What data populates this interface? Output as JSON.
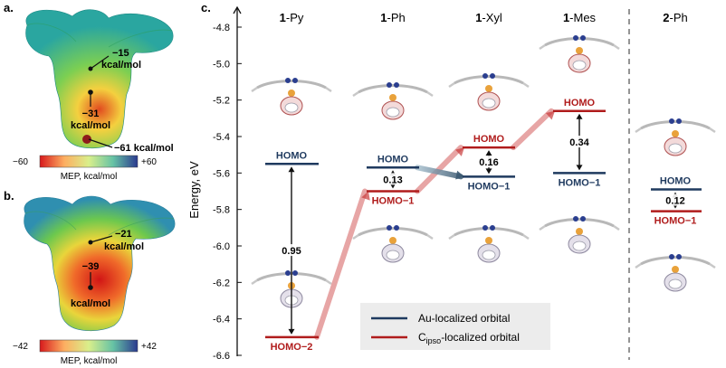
{
  "panels": {
    "a": {
      "label": "a.",
      "annotations": [
        {
          "id": "ann-a-15",
          "lines": [
            "−15",
            "kcal/mol"
          ]
        },
        {
          "id": "ann-a-31",
          "lines": [
            "−31",
            "kcal/mol"
          ]
        },
        {
          "id": "ann-a-61",
          "lines": [
            "−61 kcal/mol"
          ]
        }
      ],
      "colorbar": {
        "min_label": "−60",
        "max_label": "+60",
        "caption": "MEP, kcal/mol"
      }
    },
    "b": {
      "label": "b.",
      "annotations": [
        {
          "id": "ann-b-21",
          "lines": [
            "−21",
            "kcal/mol"
          ]
        },
        {
          "id": "ann-b-39",
          "lines": [
            "−39",
            "kcal/mol"
          ]
        }
      ],
      "colorbar": {
        "min_label": "−42",
        "max_label": "+42",
        "caption": "MEP, kcal/mol"
      }
    },
    "c": {
      "label": "c."
    }
  },
  "colors": {
    "au_orbital": "#1f3a5f",
    "cipso_orbital": "#b01c1c",
    "axis": "#111111",
    "divider": "#888888"
  },
  "chart_data": {
    "type": "energy-level diagram",
    "ylabel": "Energy, eV",
    "ylim": [
      -6.6,
      -4.7
    ],
    "yticks": [
      -6.6,
      -6.4,
      -6.2,
      -6.0,
      -5.8,
      -5.6,
      -5.4,
      -5.2,
      -5.0,
      -4.8
    ],
    "ytick_labels": [
      "-6.6",
      "-6.4",
      "-6.2",
      "-6.0",
      "-5.8",
      "-5.6",
      "-5.4",
      "-5.2",
      "-5.0",
      "-4.8"
    ],
    "columns": [
      {
        "id": "1py",
        "prefix": "1",
        "suffix": "-Py",
        "levels": [
          {
            "label": "HOMO",
            "energy": -5.55,
            "type": "au"
          },
          {
            "label": "HOMO−2",
            "energy": -6.5,
            "type": "cipso"
          }
        ],
        "gap": {
          "value": "0.95",
          "from": -5.55,
          "to": -6.5
        }
      },
      {
        "id": "1ph",
        "prefix": "1",
        "suffix": "-Ph",
        "levels": [
          {
            "label": "HOMO",
            "energy": -5.57,
            "type": "au"
          },
          {
            "label": "HOMO−1",
            "energy": -5.7,
            "type": "cipso"
          }
        ],
        "gap": {
          "value": "0.13",
          "from": -5.57,
          "to": -5.7
        }
      },
      {
        "id": "1xyl",
        "prefix": "1",
        "suffix": "-Xyl",
        "levels": [
          {
            "label": "HOMO",
            "energy": -5.46,
            "type": "cipso"
          },
          {
            "label": "HOMO−1",
            "energy": -5.62,
            "type": "au"
          }
        ],
        "gap": {
          "value": "0.16",
          "from": -5.46,
          "to": -5.62
        }
      },
      {
        "id": "1mes",
        "prefix": "1",
        "suffix": "-Mes",
        "levels": [
          {
            "label": "HOMO",
            "energy": -5.26,
            "type": "cipso"
          },
          {
            "label": "HOMO−1",
            "energy": -5.6,
            "type": "au"
          }
        ],
        "gap": {
          "value": "0.34",
          "from": -5.26,
          "to": -5.6
        }
      },
      {
        "id": "2ph",
        "prefix": "2",
        "suffix": "-Ph",
        "levels": [
          {
            "label": "HOMO",
            "energy": -5.69,
            "type": "au"
          },
          {
            "label": "HOMO−1",
            "energy": -5.81,
            "type": "cipso"
          }
        ],
        "gap": {
          "value": "0.12",
          "from": -5.69,
          "to": -5.81
        }
      }
    ],
    "correlation_arrows": [
      {
        "from_column": "1py",
        "from_energy": -6.5,
        "to_column": "1ph",
        "to_energy": -5.7
      },
      {
        "from_column": "1ph",
        "from_energy": -5.7,
        "to_column": "1xyl",
        "to_energy": -5.46
      },
      {
        "from_column": "1xyl",
        "from_energy": -5.46,
        "to_column": "1mes",
        "to_energy": -5.26
      },
      {
        "from_column": "1ph",
        "from_energy": -5.57,
        "to_column": "1xyl",
        "to_energy": -5.62
      }
    ],
    "legend": {
      "position": "bottom",
      "entries": [
        {
          "type": "au",
          "label": "Au-localized orbital"
        },
        {
          "type": "cipso",
          "label_prefix": "C",
          "label_sub": "ipso",
          "label_suffix": "-localized orbital"
        }
      ]
    }
  }
}
